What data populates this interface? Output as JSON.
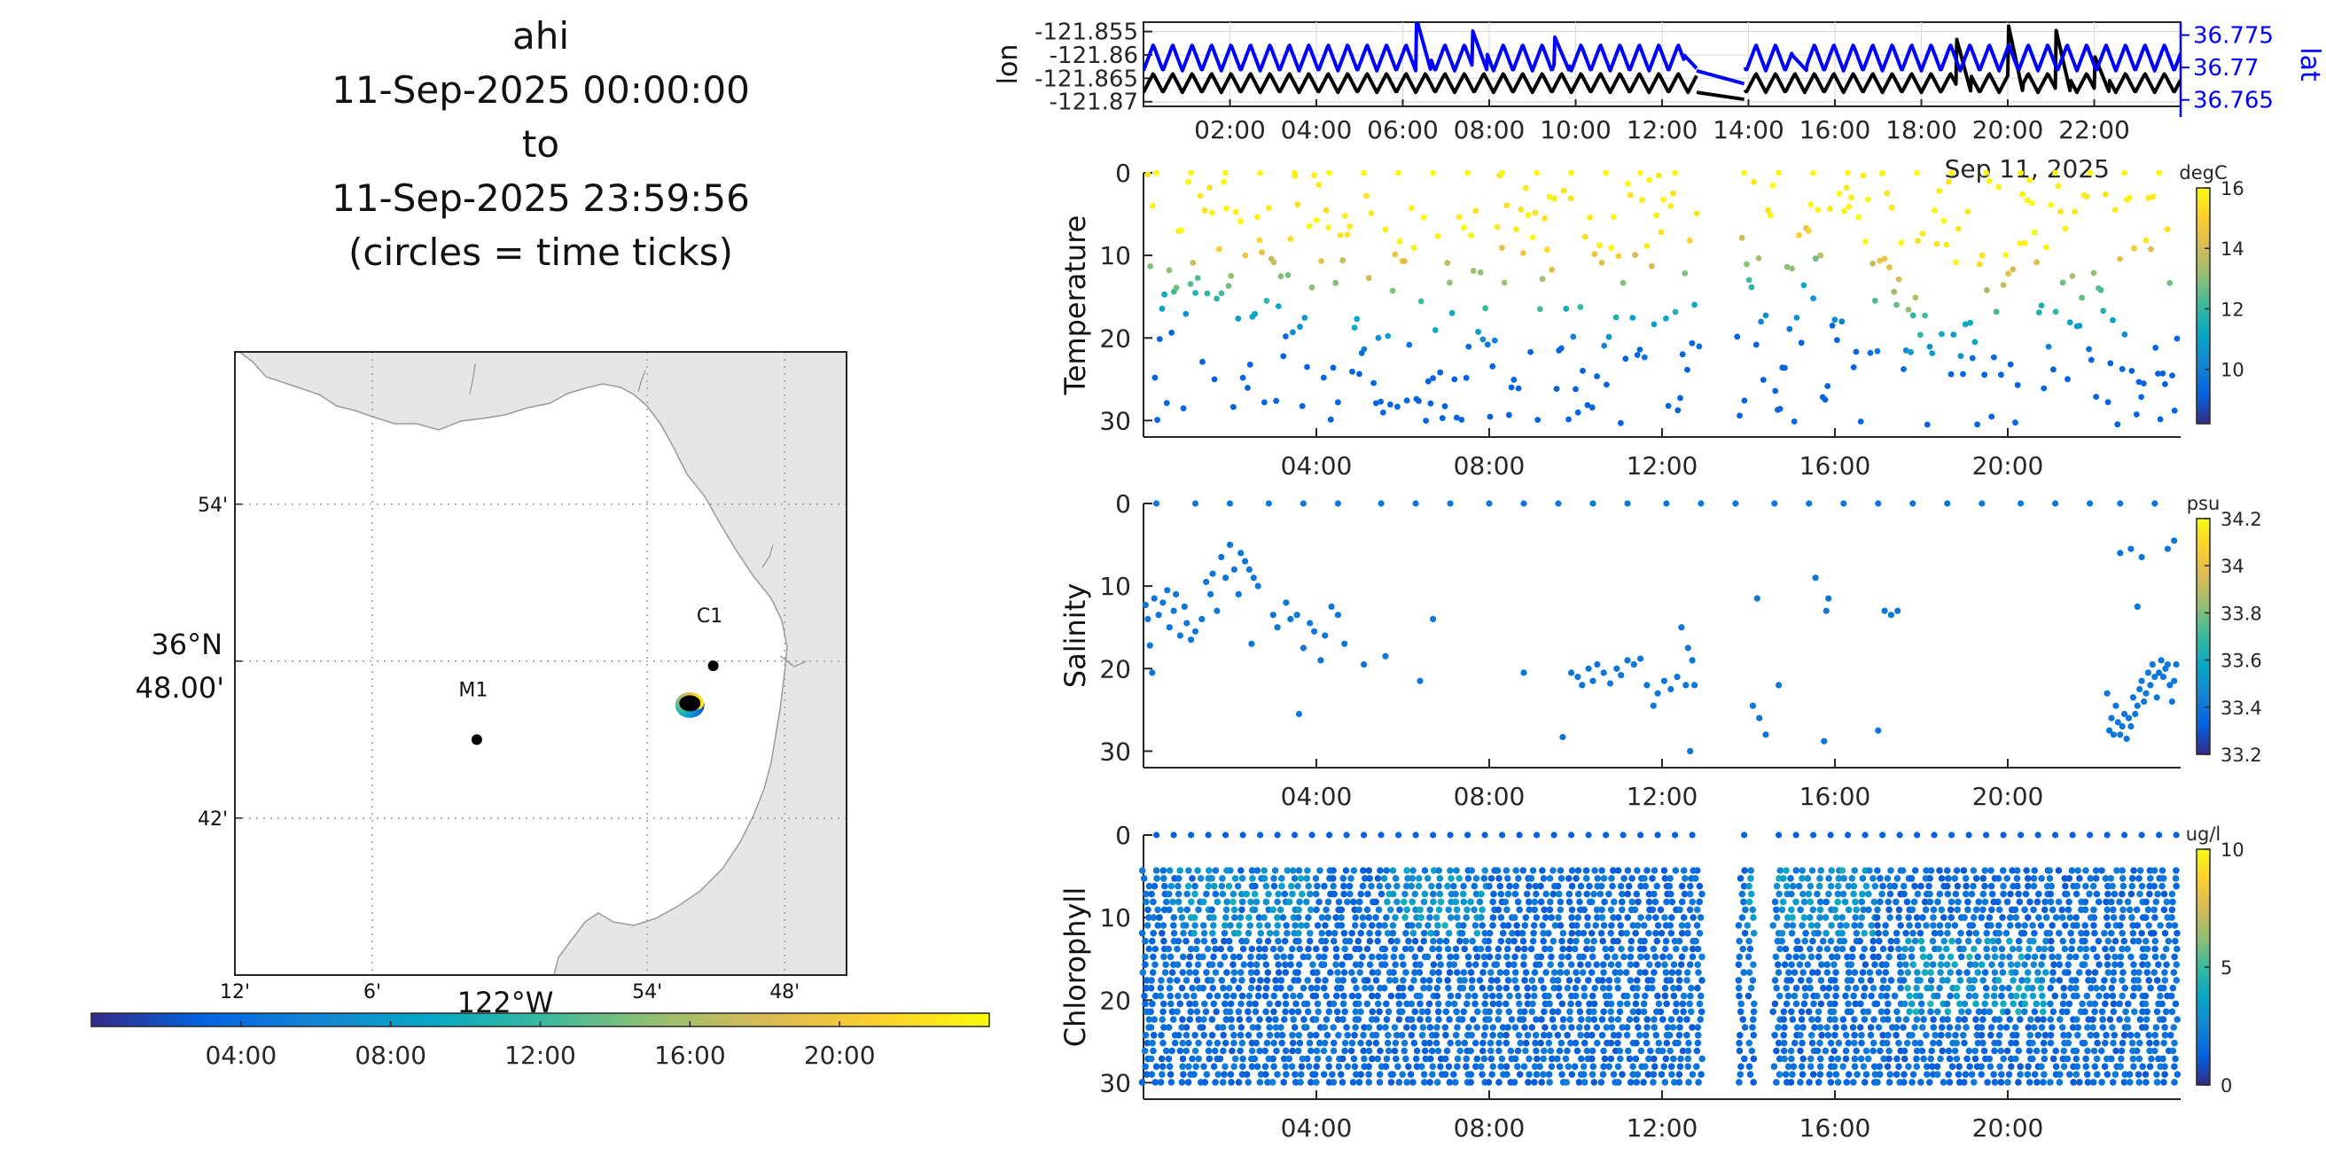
{
  "title_lines": [
    "ahi",
    "11-Sep-2025 00:00:00",
    "to",
    "11-Sep-2025 23:59:56",
    "(circles = time ticks)"
  ],
  "colors": {
    "parula": [
      "#352a87",
      "#0363e1",
      "#1485d4",
      "#06a7c6",
      "#38b99e",
      "#92bf73",
      "#d9ba56",
      "#fcce2e",
      "#f9fb0e"
    ],
    "lon_line": "#000000",
    "lat_line": "#0000ff",
    "land": "#e6e6e6",
    "coast": "#9a9a9a"
  },
  "chart_data": [
    {
      "type": "line",
      "name": "position",
      "ylabel_left": "lon",
      "ylabel_right": "lat",
      "left_ticks": [
        "-121.855",
        "-121.86",
        "-121.865",
        "-121.87"
      ],
      "right_ticks": [
        "36.775",
        "36.77",
        "36.765"
      ],
      "ylim_left": [
        -121.871,
        -121.853
      ],
      "ylim_right": [
        36.764,
        36.777
      ],
      "xlim_hours": [
        0,
        24
      ],
      "x_ticks": [
        "02:00",
        "04:00",
        "06:00",
        "08:00",
        "10:00",
        "12:00",
        "14:00",
        "16:00",
        "18:00",
        "20:00",
        "22:00"
      ],
      "date_label": "Sep 11, 2025",
      "grid": true,
      "series": [
        {
          "axis": "left",
          "baseline": -121.868,
          "amplitude": 0.004,
          "period_h": 0.45,
          "gap": [
            12.8,
            13.9
          ],
          "spikes": [
            [
              18.8,
              -121.856
            ],
            [
              20.0,
              -121.853
            ],
            [
              21.1,
              -121.854
            ],
            [
              22.0,
              -121.86
            ]
          ]
        },
        {
          "axis": "right",
          "baseline": 36.7695,
          "amplitude": 0.004,
          "period_h": 0.45,
          "gap": [
            12.8,
            13.9
          ],
          "spikes": [
            [
              6.3,
              36.778
            ],
            [
              7.6,
              36.776
            ],
            [
              9.5,
              36.775
            ],
            [
              12.5,
              36.772
            ],
            [
              15.0,
              36.772
            ]
          ]
        }
      ]
    },
    {
      "type": "scatter",
      "name": "temperature",
      "ylabel": "Temperature",
      "ylim": [
        0,
        32
      ],
      "y_reversed": true,
      "y_ticks": [
        0,
        10,
        20,
        30
      ],
      "xlim_hours": [
        0,
        24
      ],
      "x_ticks": [
        "04:00",
        "08:00",
        "12:00",
        "16:00",
        "20:00"
      ],
      "colorbar": {
        "unit": "degC",
        "range": [
          8.2,
          16
        ],
        "ticks": [
          "16",
          "14",
          "12",
          "10"
        ]
      },
      "gap": [
        12.9,
        13.7
      ],
      "approx_profile": [
        [
          0,
          12.5
        ],
        [
          2,
          12.8
        ],
        [
          4,
          13.5
        ],
        [
          6,
          16.5
        ],
        [
          8,
          14.5
        ],
        [
          10,
          15.5
        ],
        [
          12,
          15.0
        ],
        [
          14,
          9.0
        ],
        [
          16,
          10.5
        ],
        [
          18,
          20.0
        ],
        [
          20,
          16.5
        ],
        [
          22,
          15.0
        ],
        [
          24,
          13.0
        ]
      ]
    },
    {
      "type": "scatter",
      "name": "salinity",
      "ylabel": "Salinity",
      "ylim": [
        0,
        32
      ],
      "y_reversed": true,
      "y_ticks": [
        0,
        10,
        20,
        30
      ],
      "xlim_hours": [
        0,
        24
      ],
      "x_ticks": [
        "04:00",
        "08:00",
        "12:00",
        "16:00",
        "20:00"
      ],
      "colorbar": {
        "unit": "psu",
        "range": [
          33.2,
          34.2
        ],
        "ticks": [
          "34.2",
          "34",
          "33.8",
          "33.6",
          "33.4",
          "33.2"
        ]
      },
      "approx_value": 33.4,
      "surface_hours": [
        0.3,
        1.2,
        2.0,
        2.9,
        3.7,
        4.5,
        5.5,
        6.3,
        7.1,
        8.0,
        8.8,
        9.6,
        10.4,
        11.2,
        12.1,
        12.9,
        13.7,
        14.6,
        15.4,
        16.2,
        17.0,
        17.8,
        18.6,
        19.4,
        20.3,
        21.1,
        21.9,
        22.6,
        23.4
      ],
      "points_hd": [
        [
          0.05,
          12.3
        ],
        [
          0.1,
          14.0
        ],
        [
          0.15,
          17.2
        ],
        [
          0.2,
          20.5
        ],
        [
          0.25,
          11.5
        ],
        [
          0.35,
          13.5
        ],
        [
          0.45,
          12.0
        ],
        [
          0.55,
          10.5
        ],
        [
          0.6,
          15.0
        ],
        [
          0.7,
          13.0
        ],
        [
          0.75,
          11.0
        ],
        [
          0.85,
          16.0
        ],
        [
          0.95,
          12.5
        ],
        [
          1.0,
          14.5
        ],
        [
          1.1,
          16.5
        ],
        [
          1.2,
          15.5
        ],
        [
          1.35,
          14.0
        ],
        [
          1.45,
          9.5
        ],
        [
          1.55,
          11.0
        ],
        [
          1.6,
          8.5
        ],
        [
          1.7,
          13.0
        ],
        [
          1.8,
          6.5
        ],
        [
          1.9,
          9.0
        ],
        [
          2.0,
          5.0
        ],
        [
          2.1,
          8.0
        ],
        [
          2.2,
          11.0
        ],
        [
          2.25,
          6.0
        ],
        [
          2.35,
          7.0
        ],
        [
          2.45,
          8.0
        ],
        [
          2.55,
          9.0
        ],
        [
          2.65,
          10.0
        ],
        [
          2.5,
          17.0
        ],
        [
          3.0,
          13.5
        ],
        [
          3.1,
          15.0
        ],
        [
          3.3,
          12.0
        ],
        [
          3.4,
          14.0
        ],
        [
          3.55,
          13.5
        ],
        [
          3.6,
          25.5
        ],
        [
          3.7,
          17.5
        ],
        [
          3.85,
          14.5
        ],
        [
          3.95,
          15.5
        ],
        [
          4.1,
          19.0
        ],
        [
          4.2,
          16.0
        ],
        [
          4.35,
          12.5
        ],
        [
          4.5,
          13.5
        ],
        [
          4.65,
          17.0
        ],
        [
          5.1,
          19.5
        ],
        [
          5.6,
          18.5
        ],
        [
          6.4,
          21.5
        ],
        [
          6.7,
          14.0
        ],
        [
          8.8,
          20.5
        ],
        [
          9.7,
          28.3
        ],
        [
          9.9,
          20.5
        ],
        [
          10.05,
          21.0
        ],
        [
          10.15,
          22.0
        ],
        [
          10.3,
          20.0
        ],
        [
          10.4,
          21.5
        ],
        [
          10.5,
          19.5
        ],
        [
          10.65,
          20.5
        ],
        [
          10.8,
          21.8
        ],
        [
          10.95,
          20.0
        ],
        [
          11.05,
          20.8
        ],
        [
          11.2,
          19.0
        ],
        [
          11.35,
          19.5
        ],
        [
          11.5,
          18.8
        ],
        [
          11.65,
          22.0
        ],
        [
          11.8,
          24.5
        ],
        [
          11.9,
          23.0
        ],
        [
          12.05,
          21.5
        ],
        [
          12.2,
          22.5
        ],
        [
          12.35,
          21.0
        ],
        [
          12.45,
          15.0
        ],
        [
          12.55,
          22.0
        ],
        [
          12.6,
          17.5
        ],
        [
          12.7,
          19.0
        ],
        [
          12.75,
          22.0
        ],
        [
          12.65,
          30.0
        ],
        [
          14.1,
          24.5
        ],
        [
          14.2,
          11.5
        ],
        [
          14.25,
          26.0
        ],
        [
          14.4,
          28.0
        ],
        [
          14.7,
          22.0
        ],
        [
          15.55,
          9.0
        ],
        [
          15.8,
          13.0
        ],
        [
          15.85,
          11.5
        ],
        [
          15.75,
          28.8
        ],
        [
          17.0,
          27.5
        ],
        [
          17.15,
          13.0
        ],
        [
          17.3,
          13.5
        ],
        [
          17.45,
          13.0
        ],
        [
          22.3,
          23.0
        ],
        [
          22.35,
          27.5
        ],
        [
          22.4,
          26.0
        ],
        [
          22.45,
          28.0
        ],
        [
          22.5,
          24.5
        ],
        [
          22.55,
          26.5
        ],
        [
          22.6,
          28.0
        ],
        [
          22.65,
          27.0
        ],
        [
          22.7,
          25.5
        ],
        [
          22.75,
          28.5
        ],
        [
          22.8,
          26.0
        ],
        [
          22.85,
          27.0
        ],
        [
          22.9,
          23.5
        ],
        [
          22.95,
          25.5
        ],
        [
          23.0,
          24.5
        ],
        [
          23.05,
          22.5
        ],
        [
          23.1,
          21.5
        ],
        [
          23.15,
          24.0
        ],
        [
          23.2,
          23.0
        ],
        [
          23.25,
          20.5
        ],
        [
          23.3,
          22.0
        ],
        [
          23.35,
          19.5
        ],
        [
          23.4,
          21.0
        ],
        [
          23.45,
          23.5
        ],
        [
          23.5,
          20.5
        ],
        [
          23.55,
          19.0
        ],
        [
          23.6,
          21.0
        ],
        [
          23.65,
          20.0
        ],
        [
          23.7,
          19.5
        ],
        [
          23.75,
          22.0
        ],
        [
          23.8,
          24.0
        ],
        [
          23.85,
          21.5
        ],
        [
          23.9,
          19.5
        ],
        [
          22.6,
          6.0
        ],
        [
          22.85,
          5.5
        ],
        [
          23.1,
          6.5
        ],
        [
          23.0,
          12.5
        ],
        [
          23.7,
          5.5
        ],
        [
          23.85,
          4.5
        ]
      ]
    },
    {
      "type": "scatter",
      "name": "chlorophyll",
      "ylabel": "Chlorophyll",
      "ylim": [
        0,
        32
      ],
      "y_reversed": true,
      "y_ticks": [
        0,
        10,
        20,
        30
      ],
      "xlim_hours": [
        0,
        24
      ],
      "x_ticks": [
        "04:00",
        "08:00",
        "12:00",
        "16:00",
        "20:00"
      ],
      "colorbar": {
        "unit": "ug/l",
        "range": [
          0,
          10
        ],
        "ticks": [
          "10",
          "5",
          "0"
        ]
      },
      "gap": [
        12.85,
        13.65
      ],
      "gap2": [
        14.1,
        14.45
      ],
      "approx_value": 1.5
    },
    {
      "type": "map",
      "name": "track-map",
      "lat_ticks": [
        "54'",
        "36°N\n48.00'",
        "42'"
      ],
      "lon_ticks": [
        "12'",
        "6'",
        "54'",
        "48'"
      ],
      "lon_center_label": "122°W",
      "lat_lines": [
        36.9,
        36.8,
        36.7
      ],
      "lon_lines": [
        -122.2,
        -122.1,
        -121.9,
        -121.8
      ],
      "xlim": [
        -122.2,
        -121.755
      ],
      "ylim": [
        36.6,
        36.997
      ],
      "stations": [
        {
          "label": "M1",
          "lon": -122.024,
          "lat": 36.75
        },
        {
          "label": "C1",
          "lon": -121.852,
          "lat": 36.797
        }
      ],
      "track_center": {
        "lon": -121.869,
        "lat": 36.772
      },
      "time_colorbar": {
        "ticks": [
          "04:00",
          "08:00",
          "12:00",
          "16:00",
          "20:00"
        ],
        "range_hours": [
          0,
          24
        ]
      }
    }
  ]
}
